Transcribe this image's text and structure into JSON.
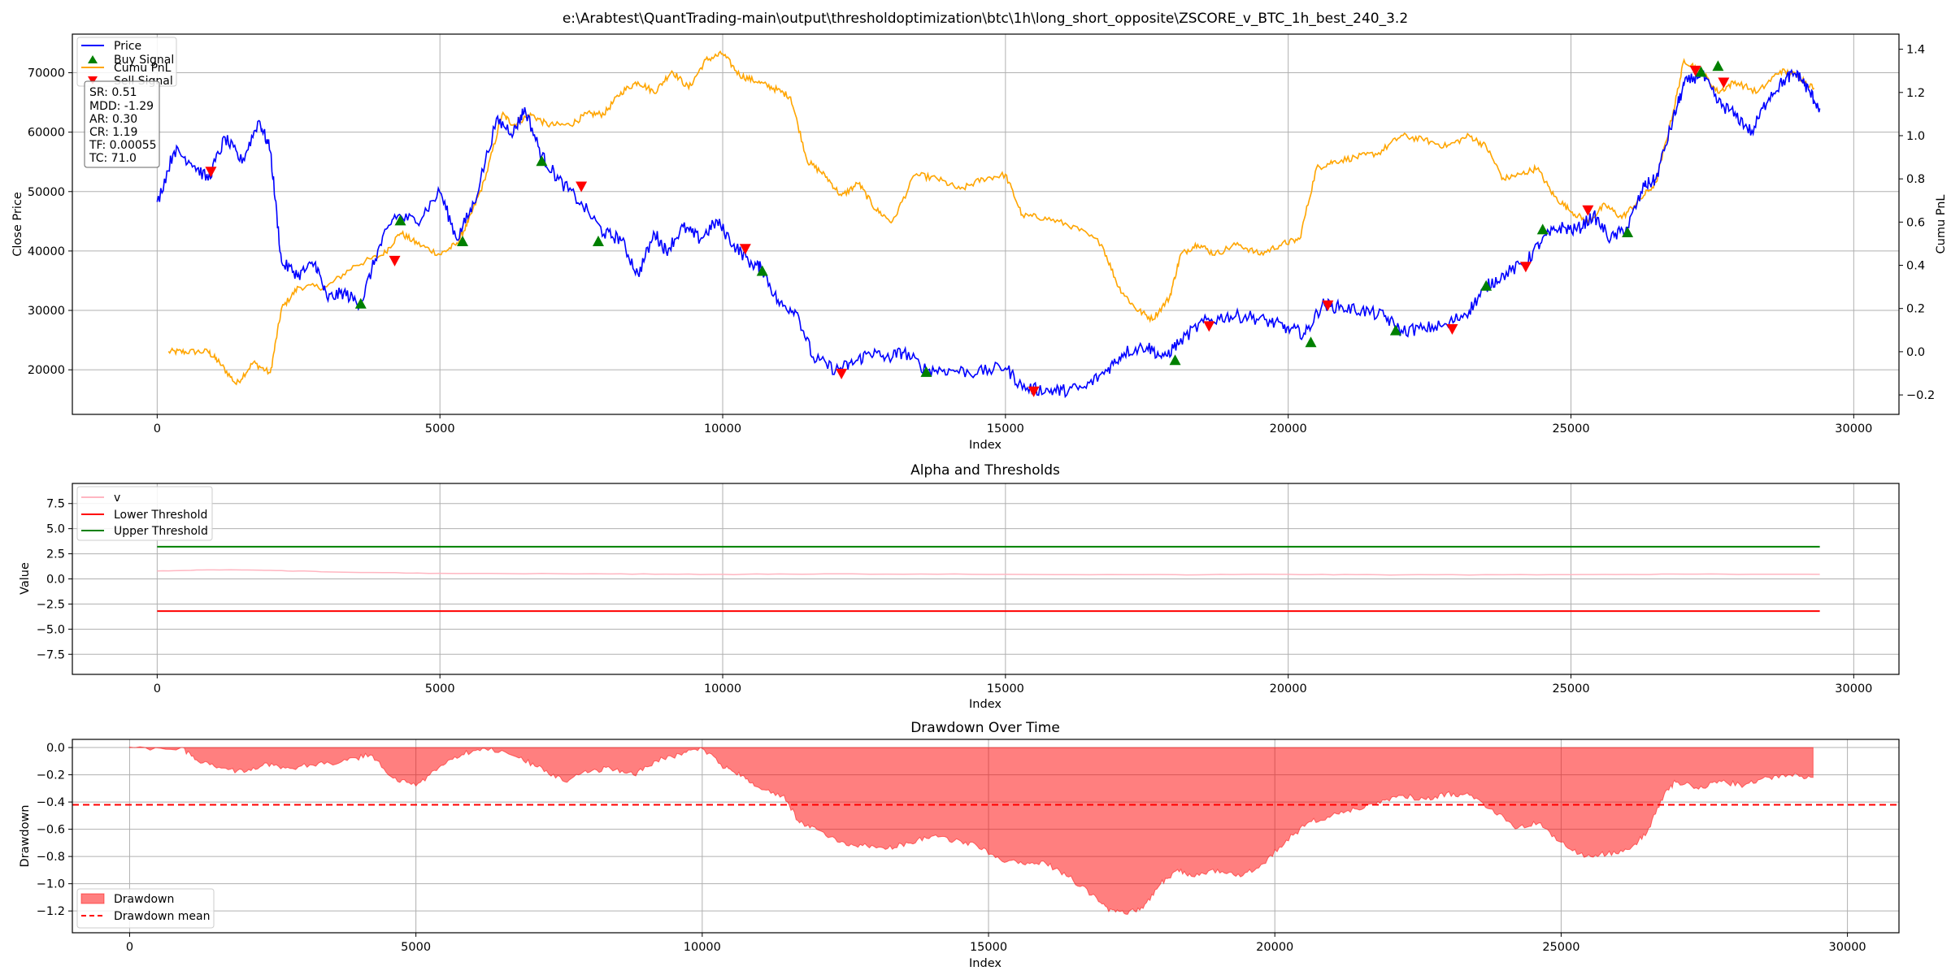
{
  "chart_data": [
    {
      "type": "line",
      "title": "e:\\Arabtest\\QuantTrading-main\\output\\thresholdoptimization\\btc\\1h\\long_short_opposite\\ZSCORE_v_BTC_1h_best_240_3.2",
      "xlabel": "Index",
      "ylabel": "Close Price",
      "y2label": "Cumu PnL",
      "xlim": [
        -1500,
        30800
      ],
      "ylim": [
        12500,
        76500
      ],
      "y2lim": [
        -0.29,
        1.47
      ],
      "xticks": [
        "0",
        "5000",
        "10000",
        "15000",
        "20000",
        "25000",
        "30000"
      ],
      "yticks": [
        "20000",
        "30000",
        "40000",
        "50000",
        "60000",
        "70000"
      ],
      "y2ticks": [
        "−0.2",
        "0.0",
        "0.2",
        "0.4",
        "0.6",
        "0.8",
        "1.0",
        "1.2",
        "1.4"
      ],
      "grid": true,
      "legend_position": "top-left",
      "legend": [
        "Price",
        "Buy Signal",
        "Cumu PnL",
        "Sell Signal"
      ],
      "stats": [
        "SR: 0.51",
        "MDD: -1.29",
        "AR: 0.30",
        "CR: 1.19",
        "TF: 0.00055",
        "TC: 71.0"
      ],
      "colors": {
        "price": "#0000ff",
        "pnl": "#ffa500",
        "buy": "#008000",
        "sell": "#ff0000"
      },
      "series": [
        {
          "name": "Price",
          "axis": "left",
          "x": [
            0,
            300,
            600,
            900,
            1200,
            1500,
            1800,
            2000,
            2200,
            2500,
            2800,
            3000,
            3300,
            3600,
            3900,
            4200,
            4600,
            5000,
            5300,
            5600,
            6000,
            6300,
            6500,
            6800,
            7100,
            7500,
            7900,
            8200,
            8500,
            8800,
            9000,
            9300,
            9600,
            9900,
            10200,
            10500,
            10700,
            11000,
            11300,
            11600,
            12000,
            12300,
            12600,
            12900,
            13200,
            13600,
            14000,
            14500,
            15000,
            15300,
            15700,
            16000,
            16400,
            16800,
            17100,
            17500,
            17800,
            18100,
            18500,
            18900,
            19300,
            19700,
            20000,
            20300,
            20600,
            20900,
            21300,
            21700,
            22000,
            22400,
            22800,
            23200,
            23500,
            23800,
            24200,
            24500,
            24800,
            25100,
            25400,
            25700,
            26000,
            26300,
            26500,
            26800,
            27000,
            27300,
            27600,
            27900,
            28200,
            28500,
            28800,
            29000,
            29200,
            29400
          ],
          "values": [
            48000,
            57000,
            55000,
            52000,
            59000,
            55000,
            62000,
            57000,
            38000,
            36000,
            38000,
            32000,
            33000,
            31000,
            40000,
            46000,
            45000,
            50000,
            42000,
            48000,
            62000,
            60000,
            64000,
            56000,
            52000,
            48000,
            43000,
            42000,
            36000,
            43000,
            40000,
            44000,
            42000,
            45000,
            41000,
            38000,
            37000,
            31000,
            30000,
            22000,
            20000,
            21000,
            23000,
            22000,
            23000,
            20000,
            20000,
            19500,
            20500,
            17000,
            16500,
            16500,
            17000,
            20000,
            23000,
            24000,
            22000,
            25000,
            28000,
            29000,
            29000,
            28000,
            27000,
            26000,
            31000,
            30500,
            30000,
            29000,
            26500,
            27000,
            27500,
            30000,
            34000,
            36000,
            38000,
            42000,
            44000,
            43500,
            46000,
            42000,
            44000,
            51000,
            52000,
            62000,
            68000,
            70000,
            65000,
            63000,
            60000,
            66000,
            69000,
            70000,
            67000,
            64000
          ]
        },
        {
          "name": "Cumu PnL",
          "axis": "right",
          "x": [
            200,
            500,
            900,
            1100,
            1400,
            1700,
            2000,
            2200,
            2500,
            3000,
            3500,
            4000,
            4300,
            4600,
            5000,
            5300,
            5500,
            5800,
            6100,
            6300,
            6600,
            6900,
            7300,
            7600,
            7900,
            8200,
            8500,
            8800,
            9100,
            9400,
            9700,
            10000,
            10300,
            10600,
            10900,
            11200,
            11500,
            11800,
            12100,
            12400,
            12700,
            13000,
            13400,
            13800,
            14200,
            14600,
            15000,
            15300,
            15700,
            16200,
            16700,
            17000,
            17300,
            17600,
            17900,
            18100,
            18400,
            18700,
            19100,
            19500,
            19900,
            20200,
            20500,
            20800,
            21200,
            21600,
            22000,
            22400,
            22800,
            23200,
            23500,
            23800,
            24100,
            24400,
            24700,
            25000,
            25300,
            25600,
            25900,
            26200,
            26500,
            26800,
            27000,
            27300,
            27600,
            27900,
            28300,
            28700,
            29000,
            29300
          ],
          "values": [
            0.0,
            0.0,
            0.0,
            -0.05,
            -0.15,
            -0.05,
            -0.1,
            0.2,
            0.3,
            0.3,
            0.4,
            0.45,
            0.55,
            0.5,
            0.45,
            0.5,
            0.6,
            0.8,
            1.1,
            1.05,
            1.1,
            1.05,
            1.05,
            1.1,
            1.1,
            1.2,
            1.25,
            1.2,
            1.3,
            1.22,
            1.35,
            1.38,
            1.28,
            1.25,
            1.22,
            1.18,
            0.88,
            0.82,
            0.72,
            0.78,
            0.66,
            0.6,
            0.82,
            0.8,
            0.75,
            0.8,
            0.82,
            0.63,
            0.62,
            0.58,
            0.5,
            0.3,
            0.2,
            0.15,
            0.25,
            0.45,
            0.5,
            0.45,
            0.5,
            0.45,
            0.5,
            0.52,
            0.85,
            0.88,
            0.9,
            0.92,
            1.0,
            0.98,
            0.95,
            1.0,
            0.95,
            0.8,
            0.82,
            0.85,
            0.72,
            0.65,
            0.6,
            0.68,
            0.62,
            0.7,
            0.78,
            1.1,
            1.35,
            1.3,
            1.2,
            1.25,
            1.2,
            1.3,
            1.28,
            1.22
          ]
        },
        {
          "name": "Buy Signal",
          "axis": "left",
          "marker": "triangle-up",
          "x": [
            3600,
            4300,
            5400,
            6800,
            7800,
            10700,
            13600,
            18000,
            20400,
            21900,
            23500,
            24500,
            26000,
            27300,
            27600
          ],
          "values": [
            31000,
            45000,
            41500,
            55000,
            41500,
            36500,
            19500,
            21500,
            24500,
            26500,
            34000,
            43500,
            43000,
            70000,
            71000
          ]
        },
        {
          "name": "Sell Signal",
          "axis": "left",
          "marker": "triangle-down",
          "x": [
            950,
            4200,
            7500,
            10400,
            12100,
            15500,
            18600,
            20700,
            22900,
            24200,
            25300,
            27200,
            27700
          ],
          "values": [
            53500,
            38500,
            51000,
            40500,
            19500,
            16500,
            27500,
            31000,
            27000,
            37500,
            47000,
            70500,
            68500
          ]
        }
      ]
    },
    {
      "type": "line",
      "title": "Alpha and Thresholds",
      "xlabel": "Index",
      "ylabel": "Value",
      "xlim": [
        -1500,
        30800
      ],
      "ylim": [
        -9.5,
        9.5
      ],
      "xticks": [
        "0",
        "5000",
        "10000",
        "15000",
        "20000",
        "25000",
        "30000"
      ],
      "yticks": [
        "−7.5",
        "−5.0",
        "−2.5",
        "0.0",
        "2.5",
        "5.0",
        "7.5"
      ],
      "grid": true,
      "legend_position": "top-left",
      "legend": [
        "v",
        "Lower Threshold",
        "Upper Threshold"
      ],
      "colors": {
        "v": "#ffb6c1",
        "lower": "#ff0000",
        "upper": "#008000"
      },
      "series": [
        {
          "name": "v",
          "x": [
            0,
            1000,
            2000,
            3000,
            5000,
            8000,
            10000,
            12000,
            15000,
            18000,
            20000,
            22000,
            25000,
            27000,
            29400
          ],
          "values": [
            0.8,
            0.9,
            0.85,
            0.7,
            0.55,
            0.5,
            0.45,
            0.5,
            0.45,
            0.42,
            0.45,
            0.4,
            0.42,
            0.48,
            0.45
          ]
        },
        {
          "name": "Lower Threshold",
          "x": [
            0,
            29400
          ],
          "values": [
            -3.2,
            -3.2
          ]
        },
        {
          "name": "Upper Threshold",
          "x": [
            0,
            29400
          ],
          "values": [
            3.2,
            3.2
          ]
        }
      ]
    },
    {
      "type": "area",
      "title": "Drawdown Over Time",
      "xlabel": "Index",
      "ylabel": "Drawdown",
      "xlim": [
        -1000,
        30900
      ],
      "ylim": [
        -1.36,
        0.06
      ],
      "xticks": [
        "0",
        "5000",
        "10000",
        "15000",
        "20000",
        "25000",
        "30000"
      ],
      "yticks": [
        "−1.2",
        "−1.0",
        "−0.8",
        "−0.6",
        "−0.4",
        "−0.2",
        "0.0"
      ],
      "grid": true,
      "legend_position": "bottom-left",
      "legend": [
        "Drawdown",
        "Drawdown mean"
      ],
      "colors": {
        "drawdown": "#ff0000",
        "mean": "#ff0000"
      },
      "series": [
        {
          "name": "Drawdown",
          "x": [
            0,
            900,
            1200,
            1600,
            2000,
            2400,
            2800,
            3300,
            3800,
            4200,
            4600,
            5000,
            5400,
            5800,
            6200,
            6800,
            7200,
            7600,
            8000,
            8400,
            8800,
            9200,
            9600,
            10000,
            10400,
            10700,
            11000,
            11400,
            11700,
            12000,
            12400,
            12800,
            13200,
            13600,
            14000,
            14400,
            14800,
            15200,
            15600,
            16000,
            16400,
            16800,
            17100,
            17400,
            17700,
            18000,
            18300,
            18600,
            19000,
            19400,
            19800,
            20200,
            20600,
            21000,
            21400,
            21800,
            22200,
            22600,
            23000,
            23400,
            23800,
            24200,
            24600,
            25000,
            25400,
            25800,
            26200,
            26500,
            26800,
            27000,
            27400,
            27800,
            28200,
            28600,
            29000,
            29400
          ],
          "values": [
            0.0,
            0.0,
            -0.1,
            -0.15,
            -0.18,
            -0.12,
            -0.15,
            -0.12,
            -0.1,
            -0.05,
            -0.22,
            -0.28,
            -0.15,
            -0.05,
            0.0,
            -0.08,
            -0.15,
            -0.25,
            -0.18,
            -0.15,
            -0.2,
            -0.1,
            -0.05,
            0.0,
            -0.15,
            -0.2,
            -0.3,
            -0.35,
            -0.55,
            -0.6,
            -0.7,
            -0.72,
            -0.75,
            -0.7,
            -0.65,
            -0.68,
            -0.72,
            -0.82,
            -0.85,
            -0.85,
            -0.95,
            -1.08,
            -1.2,
            -1.22,
            -1.18,
            -1.0,
            -0.9,
            -0.95,
            -0.9,
            -0.95,
            -0.85,
            -0.68,
            -0.55,
            -0.5,
            -0.45,
            -0.4,
            -0.35,
            -0.38,
            -0.34,
            -0.35,
            -0.45,
            -0.6,
            -0.55,
            -0.7,
            -0.8,
            -0.78,
            -0.75,
            -0.62,
            -0.35,
            -0.25,
            -0.3,
            -0.25,
            -0.28,
            -0.22,
            -0.2,
            -0.22
          ]
        },
        {
          "name": "Drawdown mean",
          "x": [
            -1000,
            30900
          ],
          "values": [
            -0.42,
            -0.42
          ]
        }
      ]
    }
  ]
}
